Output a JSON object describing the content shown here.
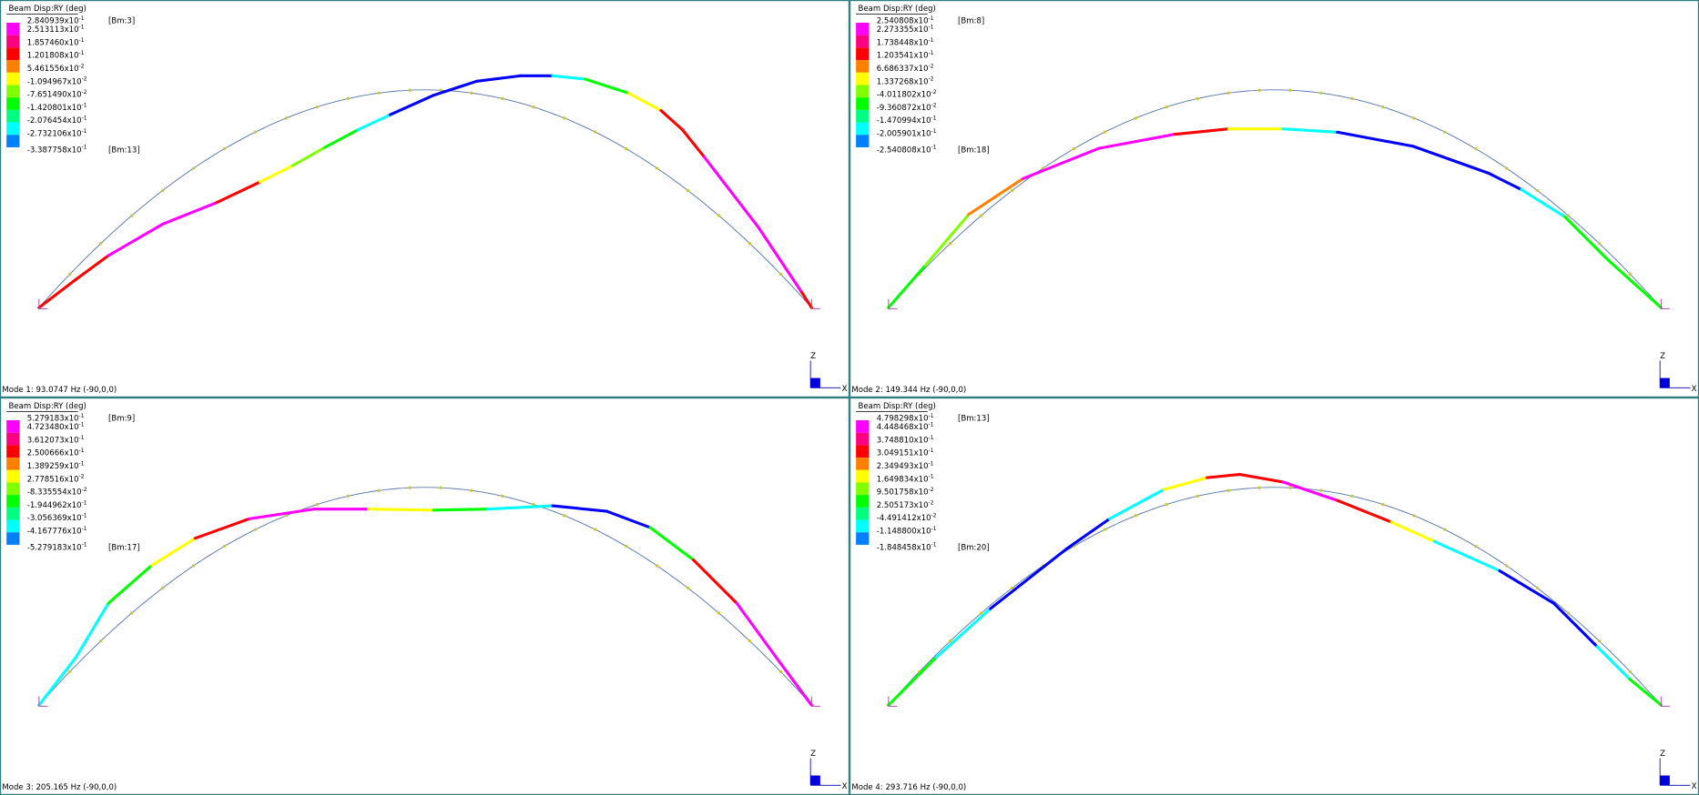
{
  "panels": [
    {
      "legend_title": "Beam Disp:RY  (deg)",
      "legend_labels": [
        {
          "base": "2.840939x10",
          "exp": "-1"
        },
        {
          "base": "2.513113x10",
          "exp": "-1"
        },
        {
          "base": "1.857460x10",
          "exp": "-1"
        },
        {
          "base": "1.201808x10",
          "exp": "-1"
        },
        {
          "base": "5.461556x10",
          "exp": "-2"
        },
        {
          "base": "-1.094967x10",
          "exp": "-2"
        },
        {
          "base": "-7.651490x10",
          "exp": "-2"
        },
        {
          "base": "-1.420801x10",
          "exp": "-1"
        },
        {
          "base": "-2.076454x10",
          "exp": "-1"
        },
        {
          "base": "-2.732106x10",
          "exp": "-1"
        },
        {
          "base": "-3.387758x10",
          "exp": "-1"
        }
      ],
      "max_tag": "[Bm:3]",
      "min_tag": "[Bm:13]",
      "mode_label": "Mode 1: 93.0747 Hz (-90,0,0)",
      "triad": {
        "z": "Z",
        "x": "X"
      }
    },
    {
      "legend_title": "Beam Disp:RY  (deg)",
      "legend_labels": [
        {
          "base": "2.540808x10",
          "exp": "-1"
        },
        {
          "base": "2.273355x10",
          "exp": "-1"
        },
        {
          "base": "1.738448x10",
          "exp": "-1"
        },
        {
          "base": "1.203541x10",
          "exp": "-1"
        },
        {
          "base": "6.686337x10",
          "exp": "-2"
        },
        {
          "base": "1.337268x10",
          "exp": "-2"
        },
        {
          "base": "-4.011802x10",
          "exp": "-2"
        },
        {
          "base": "-9.360872x10",
          "exp": "-2"
        },
        {
          "base": "-1.470994x10",
          "exp": "-1"
        },
        {
          "base": "-2.005901x10",
          "exp": "-1"
        },
        {
          "base": "-2.540808x10",
          "exp": "-1"
        }
      ],
      "max_tag": "[Bm:8]",
      "min_tag": "[Bm:18]",
      "mode_label": "Mode 2: 149.344 Hz (-90,0,0)",
      "triad": {
        "z": "Z",
        "x": "X"
      }
    },
    {
      "legend_title": "Beam Disp:RY  (deg)",
      "legend_labels": [
        {
          "base": "5.279183x10",
          "exp": "-1"
        },
        {
          "base": "4.723480x10",
          "exp": "-1"
        },
        {
          "base": "3.612073x10",
          "exp": "-1"
        },
        {
          "base": "2.500666x10",
          "exp": "-1"
        },
        {
          "base": "1.389259x10",
          "exp": "-1"
        },
        {
          "base": "2.778516x10",
          "exp": "-2"
        },
        {
          "base": "-8.335554x10",
          "exp": "-2"
        },
        {
          "base": "-1.944962x10",
          "exp": "-1"
        },
        {
          "base": "-3.056369x10",
          "exp": "-1"
        },
        {
          "base": "-4.167776x10",
          "exp": "-1"
        },
        {
          "base": "-5.279183x10",
          "exp": "-1"
        }
      ],
      "max_tag": "[Bm:9]",
      "min_tag": "[Bm:17]",
      "mode_label": "Mode 3: 205.165 Hz (-90,0,0)",
      "triad": {
        "z": "Z",
        "x": "X"
      }
    },
    {
      "legend_title": "Beam Disp:RY  (deg)",
      "legend_labels": [
        {
          "base": "4.798298x10",
          "exp": "-1"
        },
        {
          "base": "4.448468x10",
          "exp": "-1"
        },
        {
          "base": "3.748810x10",
          "exp": "-1"
        },
        {
          "base": "3.049151x10",
          "exp": "-1"
        },
        {
          "base": "2.349493x10",
          "exp": "-1"
        },
        {
          "base": "1.649834x10",
          "exp": "-1"
        },
        {
          "base": "9.501758x10",
          "exp": "-2"
        },
        {
          "base": "2.505173x10",
          "exp": "-2"
        },
        {
          "base": "-4.491412x10",
          "exp": "-2"
        },
        {
          "base": "-1.148800x10",
          "exp": "-1"
        },
        {
          "base": "-1.848458x10",
          "exp": "-1"
        }
      ],
      "max_tag": "[Bm:13]",
      "min_tag": "[Bm:20]",
      "mode_label": "Mode 4: 293.716 Hz (-90,0,0)",
      "triad": {
        "z": "Z",
        "x": "X"
      }
    }
  ]
}
